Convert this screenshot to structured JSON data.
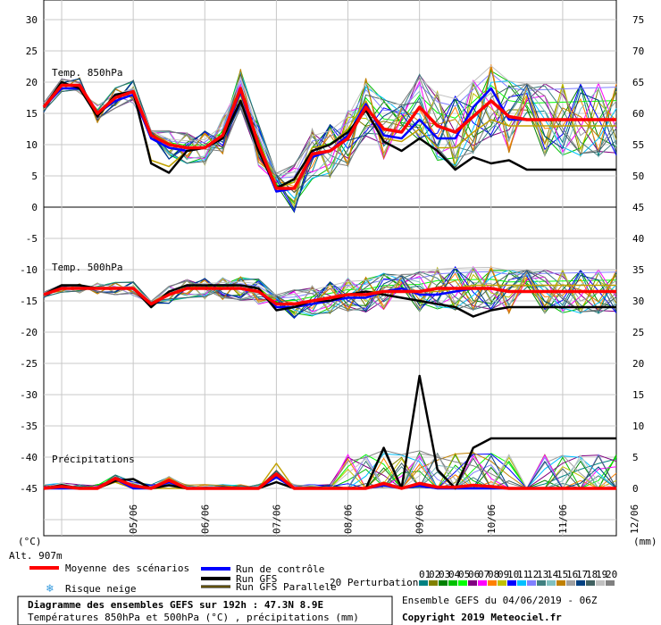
{
  "chart_data": {
    "type": "line",
    "title": "Diagramme des ensembles GEFS sur 192h : 47.3N 8.9E",
    "subtitle": "Températures 850hPa et 500hPa (°C) , précipitations (mm)",
    "run_info": "Ensemble GEFS du 04/06/2019 - 06Z",
    "copyright": "Copyright 2019 Meteociel.fr",
    "altitude": "Alt. 907m",
    "y_left_unit": "(°C)",
    "y_right_unit": "(mm)",
    "y_left_ticks": [
      "30",
      "25",
      "20",
      "15",
      "10",
      "5",
      "0",
      "-5",
      "-10",
      "-15",
      "-20",
      "-25",
      "-30",
      "-35",
      "-40",
      "-45"
    ],
    "y_right_ticks_upper": [
      "75",
      "70",
      "65",
      "60",
      "55",
      "50",
      "45"
    ],
    "y_right_ticks_lower": [
      "40",
      "35",
      "30",
      "25",
      "20",
      "15",
      "10",
      "5",
      "0"
    ],
    "x_dates": [
      "05/06",
      "06/06",
      "07/06",
      "08/06",
      "09/06",
      "10/06",
      "11/06",
      "12/06"
    ],
    "panel_labels": {
      "t850": "Temp. 850hPa",
      "t500": "Temp. 500hPa",
      "precip": "Précipitations"
    },
    "legend": {
      "mean": "Moyenne des scénarios",
      "snow": "Risque neige",
      "control": "Run de contrôle",
      "gfs": "Run GFS",
      "gfs_parallel": "Run GFS Parallele",
      "perturbations": "20 Perturbations",
      "perturbation_ids": [
        "01",
        "02",
        "03",
        "04",
        "05",
        "06",
        "07",
        "08",
        "09",
        "10",
        "11",
        "12",
        "13",
        "14",
        "15",
        "16",
        "17",
        "18",
        "19",
        "20"
      ]
    },
    "perturbation_colors": [
      "#008080",
      "#808000",
      "#008000",
      "#00c000",
      "#00ff00",
      "#800080",
      "#ff00ff",
      "#ff8000",
      "#c0c000",
      "#0000ff",
      "#00c0ff",
      "#8080ff",
      "#408080",
      "#80c0c0",
      "#c08000",
      "#a0a0a0",
      "#004080",
      "#406060",
      "#c0c0c0",
      "#808080"
    ],
    "x_hours": [
      0,
      6,
      12,
      18,
      24,
      30,
      36,
      42,
      48,
      54,
      60,
      66,
      72,
      78,
      84,
      90,
      96,
      102,
      108,
      114,
      120,
      126,
      132,
      138,
      144,
      150,
      156,
      162,
      168,
      174,
      180,
      186,
      192
    ],
    "series": [
      {
        "name": "Moyenne des scénarios",
        "color": "#ff0000",
        "t850": [
          16,
          19.5,
          19.5,
          15,
          17.5,
          18.5,
          11.5,
          10,
          9.5,
          9.5,
          11.5,
          19,
          10,
          3,
          3,
          8.5,
          9,
          11,
          16,
          12.5,
          12,
          16,
          13,
          12,
          14.5,
          17,
          14.5,
          14,
          14,
          14,
          14,
          14,
          14
        ],
        "t500": [
          -14,
          -13,
          -13,
          -13,
          -13,
          -13,
          -15.5,
          -14,
          -13,
          -13,
          -13,
          -13,
          -13.5,
          -15.5,
          -15.5,
          -15,
          -14.5,
          -14,
          -14,
          -13.5,
          -13.5,
          -13.5,
          -13,
          -13,
          -13,
          -13,
          -13.5,
          -13.5,
          -13.5,
          -13.5,
          -13.5,
          -13.5,
          -13.5
        ],
        "precip": [
          0,
          0.3,
          0,
          0,
          1.6,
          0.4,
          0,
          1.3,
          0,
          0,
          0,
          0,
          0,
          2.3,
          0,
          0,
          0,
          0,
          0,
          0.8,
          0,
          0.8,
          0.2,
          0.2,
          0.5,
          0.3,
          0,
          0,
          0,
          0,
          0,
          0,
          0
        ]
      },
      {
        "name": "Run de contrôle",
        "color": "#0000ff",
        "t850": [
          16,
          19,
          19,
          15,
          17,
          18,
          11,
          9.5,
          9,
          9.5,
          11,
          18.5,
          9.5,
          2.5,
          3,
          8,
          9,
          11.5,
          16.5,
          11.5,
          11,
          14,
          11,
          11,
          16,
          19,
          14,
          14,
          14,
          14,
          14,
          14,
          14
        ],
        "t500": [
          -14,
          -13,
          -13,
          -13,
          -13,
          -13,
          -15.5,
          -14,
          -13,
          -13,
          -13,
          -13,
          -13.5,
          -16,
          -16,
          -15.5,
          -15,
          -14.5,
          -14.5,
          -13.5,
          -13,
          -14,
          -14,
          -13.5,
          -13,
          -13,
          -13.5,
          -13.5,
          -13.5,
          -13.5,
          -13.5,
          -13.5,
          -13.5
        ],
        "precip": [
          0,
          0,
          0,
          0,
          1.5,
          0,
          0,
          1,
          0,
          0,
          0,
          0,
          0,
          1.8,
          0,
          0,
          0,
          0,
          0,
          0.5,
          0,
          0.5,
          0,
          0,
          0,
          0,
          0,
          0,
          0,
          0,
          0,
          0,
          0
        ]
      },
      {
        "name": "Run GFS",
        "color": "#000000",
        "t850": [
          16,
          20,
          19,
          14.5,
          18,
          18.5,
          7,
          5.5,
          9,
          9.5,
          11,
          17,
          9,
          3,
          4.5,
          9,
          10,
          12,
          15.5,
          10.5,
          9,
          11,
          9,
          6,
          8,
          7,
          7.5,
          6,
          6,
          6,
          6,
          6,
          6
        ],
        "t500": [
          -14,
          -12.5,
          -12.5,
          -13,
          -13,
          -13,
          -16,
          -13.5,
          -12.5,
          -12.5,
          -12.5,
          -12.5,
          -13,
          -16.5,
          -16,
          -15,
          -15,
          -14,
          -13.5,
          -14,
          -14.5,
          -15,
          -15.5,
          -16,
          -17.5,
          -16.5,
          -16,
          -16,
          -16,
          -16,
          -16,
          -16,
          -16
        ],
        "precip": [
          0,
          0.5,
          0,
          0,
          1.2,
          1.5,
          0,
          0.5,
          0,
          0,
          0,
          0,
          0,
          1,
          0,
          0,
          0,
          0,
          0,
          6.5,
          0,
          18,
          3,
          0,
          6.5,
          8,
          8,
          8,
          8,
          8,
          8,
          8,
          8
        ]
      },
      {
        "name": "Run GFS Parallele",
        "color": "#c0a000",
        "t850": [
          16,
          20,
          19,
          15,
          17.5,
          18.5,
          7.5,
          6.5,
          9,
          9.5,
          11,
          18,
          9.5,
          3,
          4,
          9.5,
          10,
          12.5,
          17,
          11,
          10.5,
          12.5,
          9.5,
          9.5,
          12,
          14,
          13,
          13,
          13,
          13,
          13,
          13,
          13
        ],
        "t500": [
          -14,
          -12.5,
          -12.5,
          -13,
          -13,
          -13,
          -15.5,
          -13.5,
          -12.5,
          -12.5,
          -12.5,
          -12.5,
          -13,
          -16,
          -16,
          -15,
          -14.5,
          -14,
          -13.5,
          -13.5,
          -13.5,
          -13.5,
          -13.5,
          -13,
          -12.5,
          -12.5,
          -12.5,
          -12.5,
          -12.5,
          -12.5,
          -12.5,
          -12.5,
          -12.5
        ],
        "precip": [
          0,
          0,
          0,
          0,
          1,
          0,
          0,
          0,
          0,
          0,
          0,
          0,
          0,
          4,
          0,
          0,
          0,
          0,
          0,
          1,
          0,
          0.5,
          0,
          0,
          0,
          0,
          0,
          0,
          0,
          0,
          0,
          0,
          0
        ]
      }
    ]
  }
}
